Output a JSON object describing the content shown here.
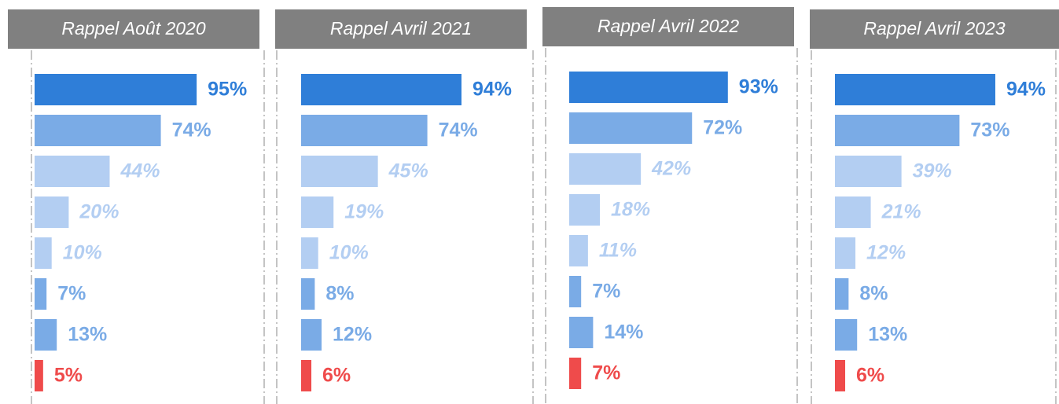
{
  "chart_data": [
    {
      "type": "bar",
      "orientation": "horizontal",
      "title": "Rappel Août 2020",
      "values": [
        95,
        74,
        44,
        20,
        10,
        7,
        13,
        5
      ],
      "value_labels": [
        "95%",
        "74%",
        "44%",
        "20%",
        "10%",
        "7%",
        "13%",
        "5%"
      ],
      "colors": [
        "#2f7ed8",
        "#7aabe6",
        "#b3cef2",
        "#b3cef2",
        "#b3cef2",
        "#7aabe6",
        "#7aabe6",
        "#ef4b4b"
      ]
    },
    {
      "type": "bar",
      "orientation": "horizontal",
      "title": "Rappel Avril 2021",
      "values": [
        94,
        74,
        45,
        19,
        10,
        8,
        12,
        6
      ],
      "value_labels": [
        "94%",
        "74%",
        "45%",
        "19%",
        "10%",
        "8%",
        "12%",
        "6%"
      ],
      "colors": [
        "#2f7ed8",
        "#7aabe6",
        "#b3cef2",
        "#b3cef2",
        "#b3cef2",
        "#7aabe6",
        "#7aabe6",
        "#ef4b4b"
      ]
    },
    {
      "type": "bar",
      "orientation": "horizontal",
      "title": "Rappel Avril 2022",
      "values": [
        93,
        72,
        42,
        18,
        11,
        7,
        14,
        7
      ],
      "value_labels": [
        "93%",
        "72%",
        "42%",
        "18%",
        "11%",
        "7%",
        "14%",
        "7%"
      ],
      "colors": [
        "#2f7ed8",
        "#7aabe6",
        "#b3cef2",
        "#b3cef2",
        "#b3cef2",
        "#7aabe6",
        "#7aabe6",
        "#ef4b4b"
      ]
    },
    {
      "type": "bar",
      "orientation": "horizontal",
      "title": "Rappel Avril 2023",
      "values": [
        94,
        73,
        39,
        21,
        12,
        8,
        13,
        6
      ],
      "value_labels": [
        "94%",
        "73%",
        "39%",
        "21%",
        "12%",
        "8%",
        "13%",
        "6%"
      ],
      "colors": [
        "#2f7ed8",
        "#7aabe6",
        "#b3cef2",
        "#b3cef2",
        "#b3cef2",
        "#7aabe6",
        "#7aabe6",
        "#ef4b4b"
      ]
    }
  ]
}
